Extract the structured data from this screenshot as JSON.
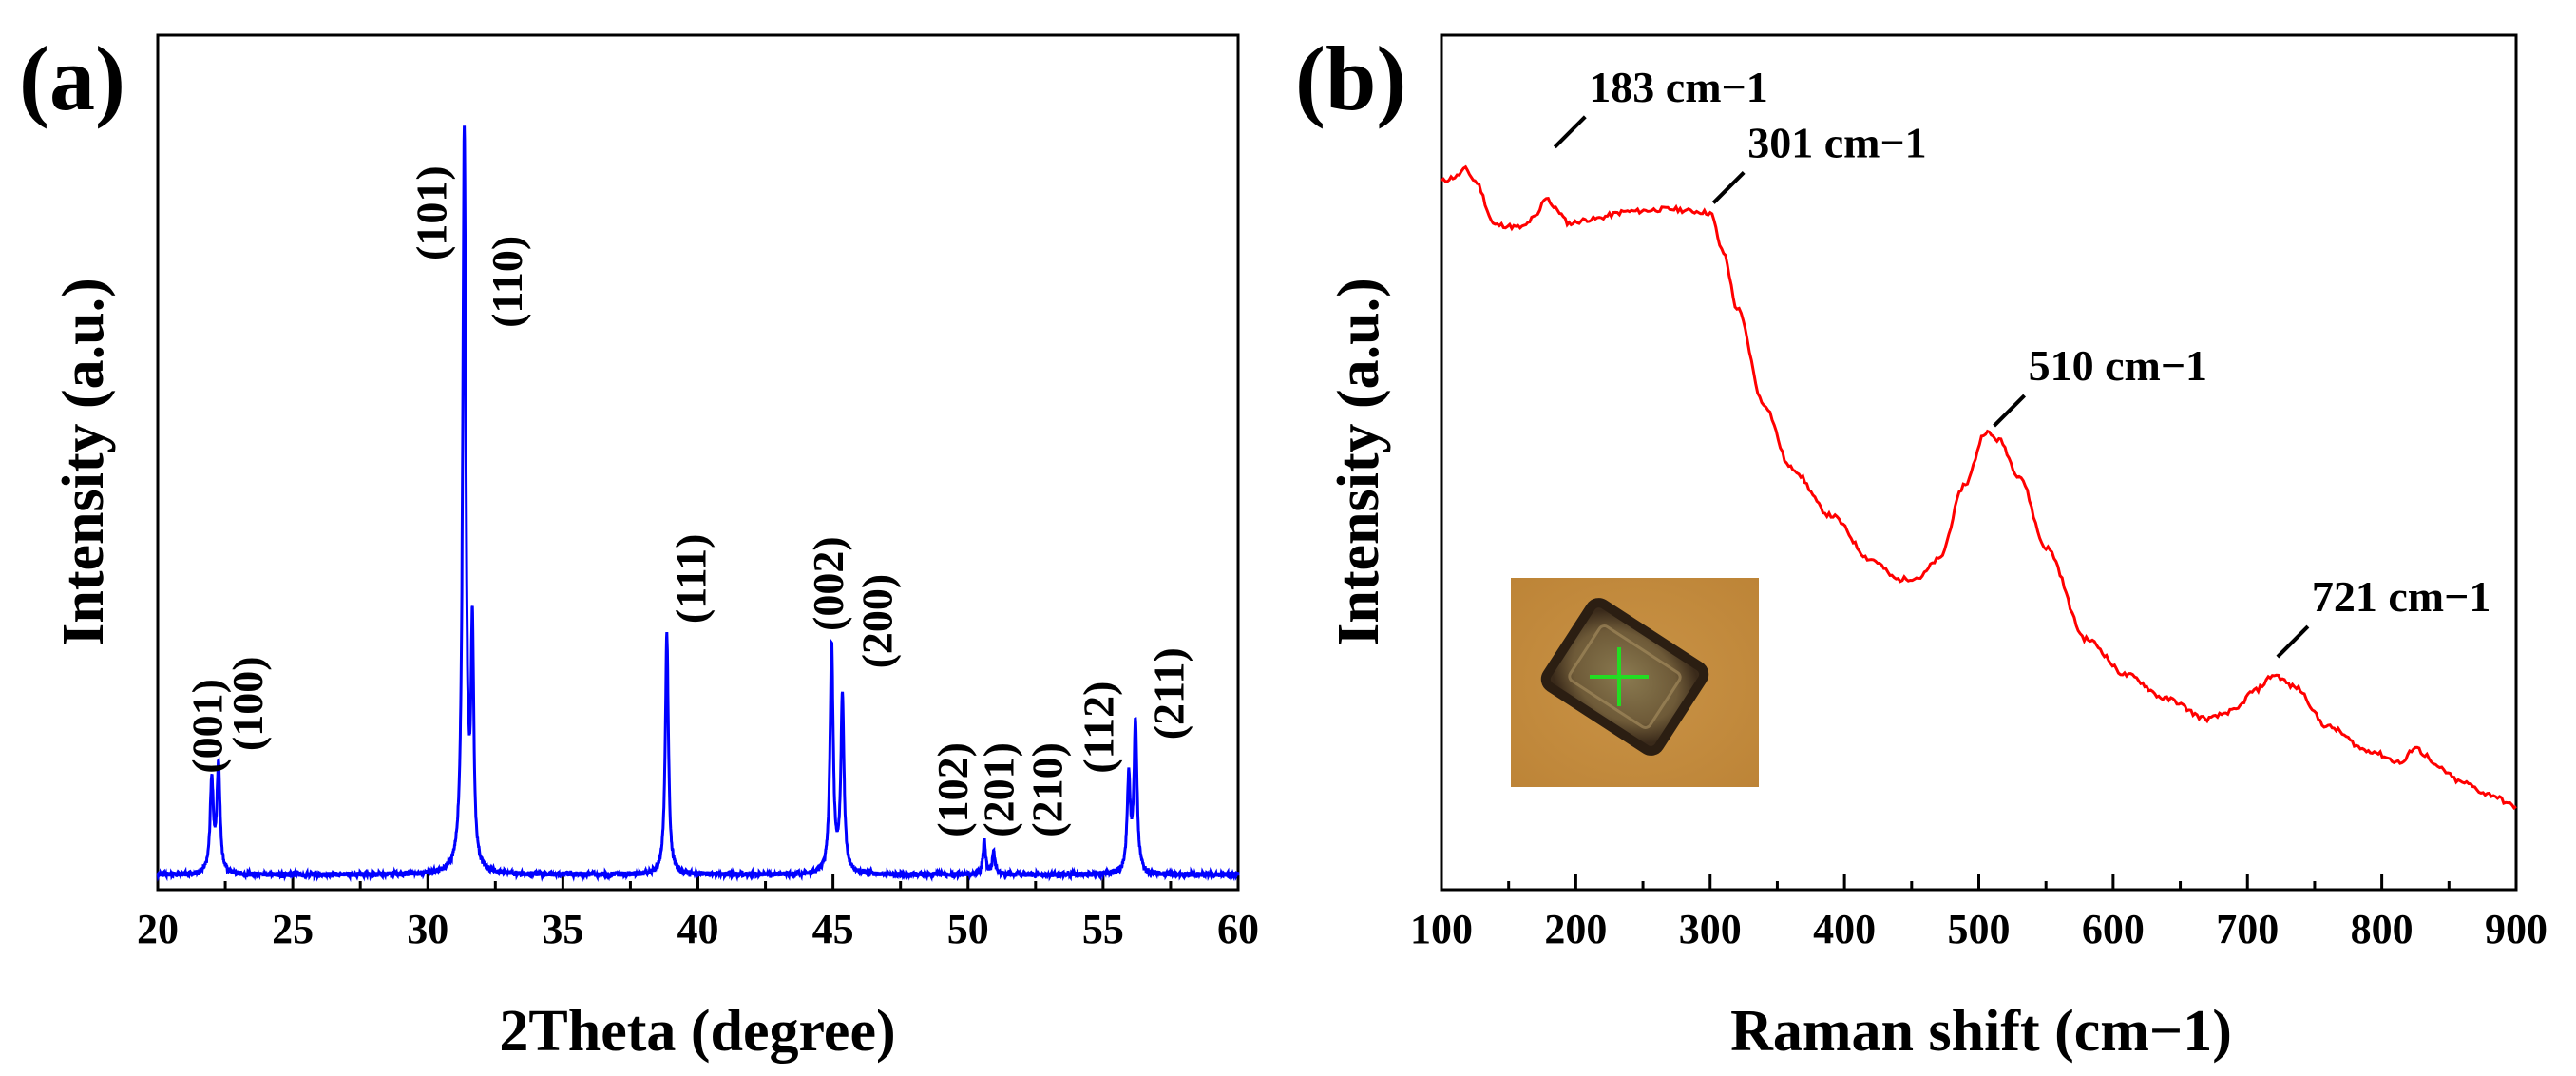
{
  "panel_a_label": "(a)",
  "panel_b_label": "(b)",
  "chart_data": [
    {
      "type": "line",
      "title": "",
      "xlabel": "2Theta (degree)",
      "ylabel": "Intensity (a.u.)",
      "xlim": [
        20,
        60
      ],
      "ylim": [
        0,
        100
      ],
      "xticks": [
        20,
        25,
        30,
        35,
        40,
        45,
        50,
        55,
        60
      ],
      "color": "#0000ff",
      "baseline": 1.0,
      "peaks": [
        {
          "x": 22.0,
          "height": 12.5,
          "width": 0.07
        },
        {
          "x": 22.25,
          "height": 14.5,
          "width": 0.07
        },
        {
          "x": 31.35,
          "height": 99.0,
          "width": 0.07
        },
        {
          "x": 31.65,
          "height": 31.0,
          "width": 0.06
        },
        {
          "x": 38.85,
          "height": 32.0,
          "width": 0.07
        },
        {
          "x": 44.95,
          "height": 30.5,
          "width": 0.07
        },
        {
          "x": 45.35,
          "height": 23.5,
          "width": 0.07
        },
        {
          "x": 50.6,
          "height": 4.5,
          "width": 0.06
        },
        {
          "x": 50.95,
          "height": 3.0,
          "width": 0.06
        },
        {
          "x": 55.95,
          "height": 12.5,
          "width": 0.07
        },
        {
          "x": 56.2,
          "height": 20.0,
          "width": 0.07
        }
      ],
      "annotations": [
        {
          "text": "(001)",
          "x": 22.0,
          "y": 14.5
        },
        {
          "text": "(100)",
          "x": 23.5,
          "y": 17.5
        },
        {
          "text": "(101)",
          "x": 30.3,
          "y": 83.0
        },
        {
          "text": "(110)",
          "x": 33.1,
          "y": 74.0
        },
        {
          "text": "(111)",
          "x": 39.9,
          "y": 34.5
        },
        {
          "text": "(002)",
          "x": 45.0,
          "y": 33.5
        },
        {
          "text": "(200)",
          "x": 46.8,
          "y": 28.5
        },
        {
          "text": "(102)",
          "x": 49.6,
          "y": 6.0
        },
        {
          "text": "(201)",
          "x": 51.3,
          "y": 6.0
        },
        {
          "text": "(210)",
          "x": 53.1,
          "y": 6.0
        },
        {
          "text": "(112)",
          "x": 55.0,
          "y": 14.5
        },
        {
          "text": "(211)",
          "x": 57.6,
          "y": 19.0
        }
      ]
    },
    {
      "type": "line",
      "title": "",
      "xlabel": "Raman shift (cm−1)",
      "ylabel": "Intensity (a.u.)",
      "xlim": [
        100,
        900
      ],
      "ylim": [
        0,
        100
      ],
      "xticks": [
        100,
        200,
        300,
        400,
        500,
        600,
        700,
        800,
        900
      ],
      "color": "#ff0000",
      "x": [
        100,
        110,
        118,
        125,
        140,
        160,
        170,
        178,
        185,
        195,
        210,
        240,
        270,
        290,
        300,
        310,
        320,
        340,
        360,
        390,
        420,
        440,
        455,
        470,
        490,
        505,
        515,
        530,
        550,
        580,
        610,
        640,
        670,
        690,
        705,
        720,
        735,
        760,
        790,
        815,
        825,
        832,
        840,
        860,
        880,
        900
      ],
      "y": [
        88,
        88.5,
        89.5,
        88,
        82.5,
        82.2,
        83.5,
        86,
        84.5,
        82.7,
        83.2,
        84.2,
        84.5,
        84.2,
        84,
        79,
        72,
        60,
        52,
        46,
        40.5,
        38,
        38.2,
        40.5,
        50,
        56.5,
        55.5,
        51,
        42,
        30.5,
        26,
        23,
        20.5,
        21.5,
        24,
        26,
        24.5,
        19.5,
        16.5,
        15,
        17,
        16,
        14.5,
        12.5,
        11,
        9.5
      ],
      "annotations": [
        {
          "text": "183 cm−1",
          "x": 183,
          "y": 98
        },
        {
          "text": "301 cm−1",
          "x": 301,
          "y": 91
        },
        {
          "text": "510 cm−1",
          "x": 510,
          "y": 63
        },
        {
          "text": "721 cm−1",
          "x": 721,
          "y": 34
        }
      ],
      "inset": {
        "description": "optical micrograph of crystal with green crosshair",
        "background": "#c58c3c",
        "crosshair_color": "#22dd22"
      }
    }
  ]
}
